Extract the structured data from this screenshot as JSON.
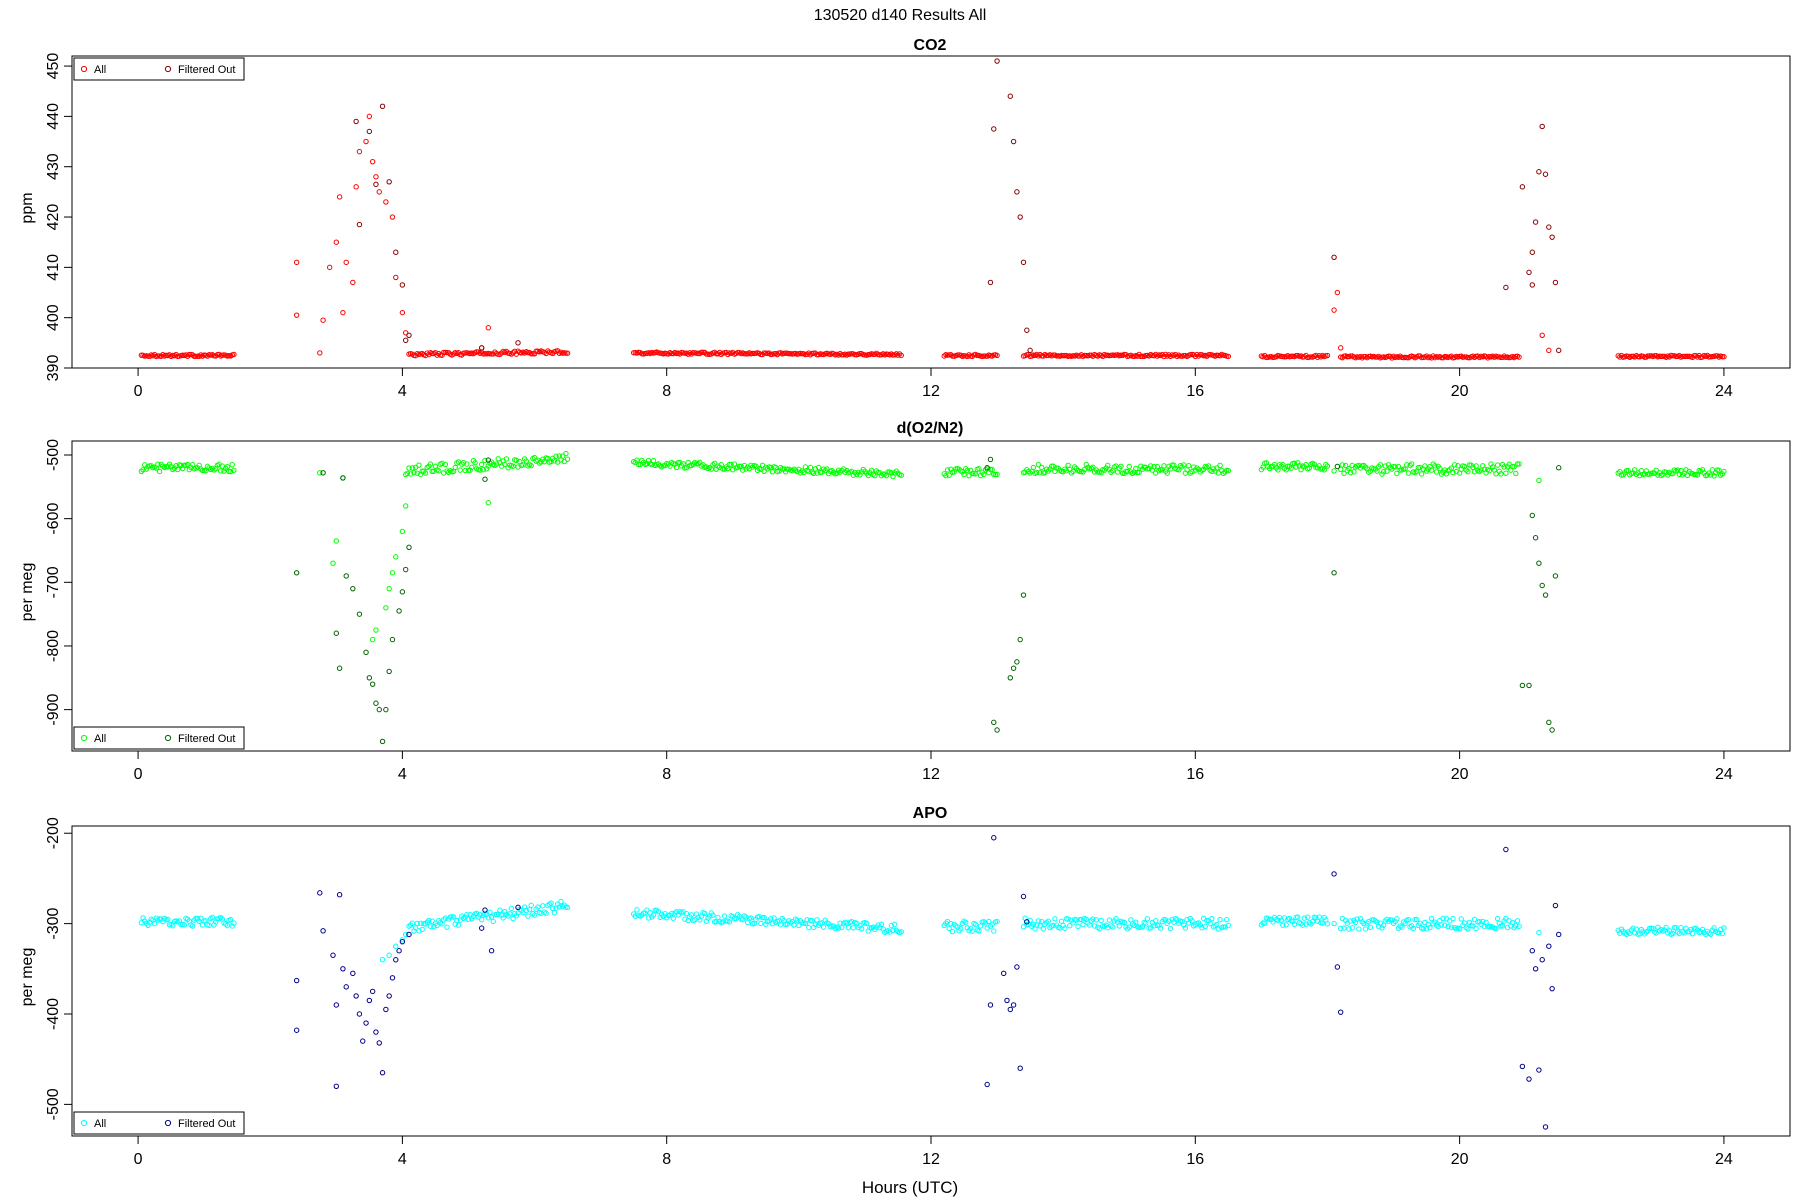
{
  "figure_title": "130520   d140   Results All",
  "common_xlabel": "Hours (UTC)",
  "chart_data": [
    {
      "type": "scatter",
      "title": "CO2",
      "xlabel": "",
      "ylabel": "ppm",
      "xlim": [
        -1.0,
        25.0
      ],
      "ylim": [
        390,
        452
      ],
      "xticks": [
        0,
        4,
        8,
        12,
        16,
        20,
        24
      ],
      "yticks": [
        390,
        400,
        410,
        420,
        430,
        440,
        450
      ],
      "legend_position": "top-left",
      "grid": false,
      "series": [
        {
          "name": "All",
          "color": "#ff0000",
          "marker": "circle-open",
          "segments": [
            {
              "x_start": 0.05,
              "x_end": 1.45,
              "base": 392.5,
              "noise": 0.2,
              "drift": 0.0
            },
            {
              "x_start": 4.1,
              "x_end": 6.5,
              "base": 392.7,
              "noise": 0.3,
              "drift": 0.5
            },
            {
              "x_start": 7.5,
              "x_end": 11.55,
              "base": 393.0,
              "noise": 0.2,
              "drift": -0.3
            },
            {
              "x_start": 12.2,
              "x_end": 13.0,
              "base": 392.5,
              "noise": 0.2,
              "drift": 0.0
            },
            {
              "x_start": 13.4,
              "x_end": 16.5,
              "base": 392.5,
              "noise": 0.2,
              "drift": 0.0
            },
            {
              "x_start": 17.0,
              "x_end": 18.0,
              "base": 392.3,
              "noise": 0.2,
              "drift": 0.0
            },
            {
              "x_start": 18.2,
              "x_end": 19.8,
              "base": 392.2,
              "noise": 0.2,
              "drift": 0.0
            },
            {
              "x_start": 19.8,
              "x_end": 20.9,
              "base": 392.2,
              "noise": 0.2,
              "drift": 0.0
            },
            {
              "x_start": 22.4,
              "x_end": 24.0,
              "base": 392.3,
              "noise": 0.2,
              "drift": 0.0
            }
          ],
          "points": [
            [
              2.4,
              411
            ],
            [
              2.4,
              400.5
            ],
            [
              2.75,
              393
            ],
            [
              2.8,
              399.5
            ],
            [
              2.9,
              410
            ],
            [
              3.0,
              415
            ],
            [
              3.05,
              424
            ],
            [
              3.1,
              401
            ],
            [
              3.15,
              411
            ],
            [
              3.25,
              407
            ],
            [
              3.3,
              426
            ],
            [
              3.35,
              433
            ],
            [
              3.45,
              435
            ],
            [
              3.5,
              440
            ],
            [
              3.55,
              431
            ],
            [
              3.6,
              428
            ],
            [
              3.65,
              425
            ],
            [
              3.75,
              423
            ],
            [
              3.85,
              420
            ],
            [
              3.9,
              408
            ],
            [
              4.0,
              401
            ],
            [
              4.05,
              397
            ],
            [
              5.2,
              394
            ],
            [
              5.3,
              398
            ],
            [
              18.1,
              401.5
            ],
            [
              18.15,
              405
            ],
            [
              18.2,
              394
            ],
            [
              21.25,
              396.5
            ],
            [
              21.35,
              393.5
            ]
          ]
        },
        {
          "name": "Filtered Out",
          "color": "#8b0000",
          "marker": "circle-open",
          "segments": [],
          "points": [
            [
              3.3,
              439
            ],
            [
              3.35,
              418.5
            ],
            [
              3.5,
              437
            ],
            [
              3.6,
              426.5
            ],
            [
              3.7,
              442
            ],
            [
              3.8,
              427
            ],
            [
              3.9,
              413
            ],
            [
              4.0,
              406.5
            ],
            [
              4.05,
              395.5
            ],
            [
              4.1,
              396.5
            ],
            [
              5.2,
              394
            ],
            [
              5.75,
              395
            ],
            [
              12.9,
              407
            ],
            [
              12.95,
              437.5
            ],
            [
              13.0,
              451
            ],
            [
              13.2,
              444
            ],
            [
              13.25,
              435
            ],
            [
              13.3,
              425
            ],
            [
              13.35,
              420
            ],
            [
              13.4,
              411
            ],
            [
              13.45,
              397.5
            ],
            [
              13.5,
              393.5
            ],
            [
              18.1,
              412
            ],
            [
              20.7,
              406
            ],
            [
              20.95,
              426
            ],
            [
              21.05,
              409
            ],
            [
              21.1,
              413
            ],
            [
              21.1,
              406.5
            ],
            [
              21.15,
              419
            ],
            [
              21.2,
              429
            ],
            [
              21.25,
              438
            ],
            [
              21.3,
              428.5
            ],
            [
              21.35,
              418
            ],
            [
              21.4,
              416
            ],
            [
              21.45,
              407
            ],
            [
              21.5,
              393.5
            ]
          ]
        }
      ]
    },
    {
      "type": "scatter",
      "title": "d(O2/N2)",
      "xlabel": "",
      "ylabel": "per meg",
      "xlim": [
        -1.0,
        25.0
      ],
      "ylim": [
        -965,
        -478
      ],
      "xticks": [
        0,
        4,
        8,
        12,
        16,
        20,
        24
      ],
      "yticks": [
        -500,
        -600,
        -700,
        -800,
        -900
      ],
      "legend_position": "bottom-left",
      "grid": false,
      "series": [
        {
          "name": "All",
          "color": "#00ff00",
          "marker": "circle-open",
          "segments": [
            {
              "x_start": 0.05,
              "x_end": 1.45,
              "base": -520,
              "noise": 6,
              "drift": 0
            },
            {
              "x_start": 4.05,
              "x_end": 6.5,
              "base": -525,
              "noise": 8,
              "drift": 20
            },
            {
              "x_start": 7.5,
              "x_end": 11.55,
              "base": -512,
              "noise": 5,
              "drift": -18
            },
            {
              "x_start": 12.2,
              "x_end": 13.0,
              "base": -527,
              "noise": 6,
              "drift": 0
            },
            {
              "x_start": 13.4,
              "x_end": 16.5,
              "base": -522,
              "noise": 7,
              "drift": 0
            },
            {
              "x_start": 17.0,
              "x_end": 18.0,
              "base": -518,
              "noise": 6,
              "drift": 0
            },
            {
              "x_start": 18.2,
              "x_end": 20.9,
              "base": -522,
              "noise": 8,
              "drift": 0
            },
            {
              "x_start": 22.4,
              "x_end": 24.0,
              "base": -528,
              "noise": 5,
              "drift": 0
            }
          ],
          "points": [
            [
              2.75,
              -528
            ],
            [
              2.95,
              -670
            ],
            [
              3.0,
              -635
            ],
            [
              3.1,
              -536
            ],
            [
              3.55,
              -790
            ],
            [
              3.6,
              -775
            ],
            [
              3.75,
              -740
            ],
            [
              3.8,
              -710
            ],
            [
              3.85,
              -685
            ],
            [
              3.9,
              -660
            ],
            [
              4.0,
              -620
            ],
            [
              4.05,
              -580
            ],
            [
              5.3,
              -575
            ],
            [
              18.1,
              -525
            ],
            [
              21.2,
              -540
            ]
          ]
        },
        {
          "name": "Filtered Out",
          "color": "#006400",
          "marker": "circle-open",
          "segments": [],
          "points": [
            [
              2.4,
              -685
            ],
            [
              2.8,
              -528
            ],
            [
              3.0,
              -780
            ],
            [
              3.05,
              -835
            ],
            [
              3.1,
              -536
            ],
            [
              3.15,
              -690
            ],
            [
              3.25,
              -710
            ],
            [
              3.35,
              -750
            ],
            [
              3.45,
              -810
            ],
            [
              3.5,
              -850
            ],
            [
              3.55,
              -860
            ],
            [
              3.6,
              -890
            ],
            [
              3.65,
              -900
            ],
            [
              3.7,
              -950
            ],
            [
              3.75,
              -900
            ],
            [
              3.8,
              -840
            ],
            [
              3.85,
              -790
            ],
            [
              3.95,
              -745
            ],
            [
              4.0,
              -715
            ],
            [
              4.05,
              -680
            ],
            [
              4.1,
              -645
            ],
            [
              5.25,
              -538
            ],
            [
              5.3,
              -508
            ],
            [
              12.85,
              -520
            ],
            [
              12.9,
              -507
            ],
            [
              12.95,
              -920
            ],
            [
              13.0,
              -932
            ],
            [
              13.2,
              -850
            ],
            [
              13.25,
              -835
            ],
            [
              13.3,
              -825
            ],
            [
              13.35,
              -790
            ],
            [
              13.4,
              -720
            ],
            [
              18.1,
              -685
            ],
            [
              18.15,
              -518
            ],
            [
              20.95,
              -862
            ],
            [
              21.05,
              -862
            ],
            [
              21.1,
              -595
            ],
            [
              21.15,
              -630
            ],
            [
              21.2,
              -670
            ],
            [
              21.25,
              -705
            ],
            [
              21.3,
              -720
            ],
            [
              21.35,
              -920
            ],
            [
              21.4,
              -932
            ],
            [
              21.45,
              -690
            ],
            [
              21.5,
              -520
            ]
          ]
        }
      ]
    },
    {
      "type": "scatter",
      "title": "APO",
      "xlabel": "Hours (UTC)",
      "ylabel": "per meg",
      "xlim": [
        -1.0,
        25.0
      ],
      "ylim": [
        -535,
        -192
      ],
      "xticks": [
        0,
        4,
        8,
        12,
        16,
        20,
        24
      ],
      "yticks": [
        -200,
        -300,
        -400,
        -500
      ],
      "legend_position": "bottom-left",
      "grid": false,
      "series": [
        {
          "name": "All",
          "color": "#00ffff",
          "marker": "circle-open",
          "segments": [
            {
              "x_start": 0.05,
              "x_end": 1.45,
              "base": -298,
              "noise": 5,
              "drift": 0
            },
            {
              "x_start": 4.1,
              "x_end": 6.5,
              "base": -305,
              "noise": 6,
              "drift": 25
            },
            {
              "x_start": 7.5,
              "x_end": 11.55,
              "base": -288,
              "noise": 5,
              "drift": -18
            },
            {
              "x_start": 12.2,
              "x_end": 13.0,
              "base": -303,
              "noise": 6,
              "drift": 0
            },
            {
              "x_start": 13.4,
              "x_end": 16.5,
              "base": -300,
              "noise": 6,
              "drift": 0
            },
            {
              "x_start": 17.0,
              "x_end": 18.0,
              "base": -297,
              "noise": 5,
              "drift": 0
            },
            {
              "x_start": 18.2,
              "x_end": 20.9,
              "base": -300,
              "noise": 6,
              "drift": 0
            },
            {
              "x_start": 22.4,
              "x_end": 24.0,
              "base": -308,
              "noise": 4,
              "drift": 0
            }
          ],
          "points": [
            [
              3.7,
              -340
            ],
            [
              3.8,
              -335
            ],
            [
              3.9,
              -325
            ],
            [
              4.0,
              -318
            ],
            [
              4.05,
              -312
            ],
            [
              18.1,
              -300
            ],
            [
              21.2,
              -310
            ]
          ]
        },
        {
          "name": "Filtered Out",
          "color": "#00008b",
          "marker": "circle-open",
          "segments": [],
          "points": [
            [
              2.4,
              -363
            ],
            [
              2.4,
              -418
            ],
            [
              2.75,
              -266
            ],
            [
              2.8,
              -308
            ],
            [
              2.95,
              -335
            ],
            [
              3.0,
              -390
            ],
            [
              3.0,
              -480
            ],
            [
              3.05,
              -268
            ],
            [
              3.1,
              -350
            ],
            [
              3.15,
              -370
            ],
            [
              3.25,
              -355
            ],
            [
              3.3,
              -380
            ],
            [
              3.35,
              -400
            ],
            [
              3.4,
              -430
            ],
            [
              3.45,
              -410
            ],
            [
              3.5,
              -385
            ],
            [
              3.55,
              -375
            ],
            [
              3.6,
              -420
            ],
            [
              3.65,
              -432
            ],
            [
              3.7,
              -465
            ],
            [
              3.75,
              -395
            ],
            [
              3.8,
              -380
            ],
            [
              3.85,
              -360
            ],
            [
              3.9,
              -340
            ],
            [
              3.95,
              -330
            ],
            [
              4.0,
              -320
            ],
            [
              4.1,
              -312
            ],
            [
              5.2,
              -305
            ],
            [
              5.25,
              -285
            ],
            [
              5.35,
              -330
            ],
            [
              5.75,
              -282
            ],
            [
              12.85,
              -478
            ],
            [
              12.9,
              -390
            ],
            [
              12.95,
              -205
            ],
            [
              13.1,
              -355
            ],
            [
              13.15,
              -385
            ],
            [
              13.2,
              -395
            ],
            [
              13.25,
              -390
            ],
            [
              13.3,
              -348
            ],
            [
              13.35,
              -460
            ],
            [
              13.4,
              -270
            ],
            [
              13.45,
              -298
            ],
            [
              18.1,
              -245
            ],
            [
              18.15,
              -348
            ],
            [
              18.2,
              -398
            ],
            [
              20.7,
              -218
            ],
            [
              20.95,
              -458
            ],
            [
              21.05,
              -472
            ],
            [
              21.1,
              -330
            ],
            [
              21.15,
              -350
            ],
            [
              21.2,
              -462
            ],
            [
              21.25,
              -340
            ],
            [
              21.3,
              -525
            ],
            [
              21.35,
              -325
            ],
            [
              21.4,
              -372
            ],
            [
              21.45,
              -280
            ],
            [
              21.5,
              -312
            ]
          ]
        }
      ]
    }
  ]
}
